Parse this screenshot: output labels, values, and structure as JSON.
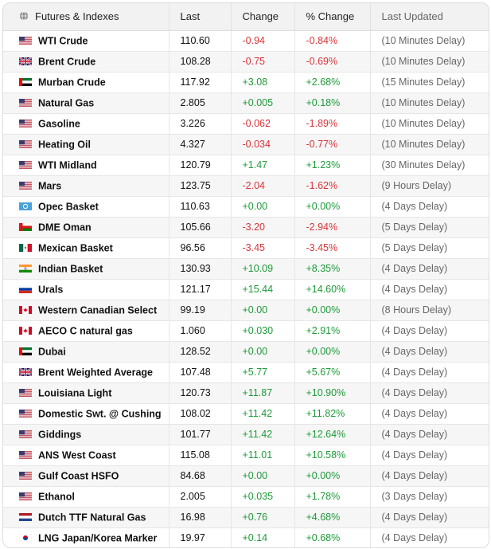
{
  "header": {
    "col1": "Futures & Indexes",
    "col2": "Last",
    "col3": "Change",
    "col4": "% Change",
    "col5": "Last Updated"
  },
  "flag_colors": {
    "us": [
      "#b22234",
      "#ffffff",
      "#3c3b6e"
    ],
    "uk": [
      "#012169",
      "#ffffff",
      "#c8102e"
    ],
    "ae": [
      "#00732f",
      "#ffffff",
      "#000000",
      "#ff0000"
    ],
    "opec": [
      "#4ba3d9",
      "#ffffff"
    ],
    "om": [
      "#db161b",
      "#ffffff",
      "#008000"
    ],
    "mx": [
      "#006847",
      "#ffffff",
      "#ce1126"
    ],
    "in": [
      "#ff9933",
      "#ffffff",
      "#138808"
    ],
    "ru": [
      "#ffffff",
      "#0039a6",
      "#d52b1e"
    ],
    "ca": [
      "#d80621",
      "#ffffff"
    ],
    "nl": [
      "#ae1c28",
      "#ffffff",
      "#21468b"
    ],
    "jpkr": [
      "#ffffff",
      "#bc002d",
      "#0047a0"
    ]
  },
  "rows": [
    {
      "flag": "us",
      "name": "WTI Crude",
      "last": "110.60",
      "change": "-0.94",
      "pct": "-0.84%",
      "updated": "(10 Minutes Delay)"
    },
    {
      "flag": "uk",
      "name": "Brent Crude",
      "last": "108.28",
      "change": "-0.75",
      "pct": "-0.69%",
      "updated": "(10 Minutes Delay)"
    },
    {
      "flag": "ae",
      "name": "Murban Crude",
      "last": "117.92",
      "change": "+3.08",
      "pct": "+2.68%",
      "updated": "(15 Minutes Delay)"
    },
    {
      "flag": "us",
      "name": "Natural Gas",
      "last": "2.805",
      "change": "+0.005",
      "pct": "+0.18%",
      "updated": "(10 Minutes Delay)"
    },
    {
      "flag": "us",
      "name": "Gasoline",
      "last": "3.226",
      "change": "-0.062",
      "pct": "-1.89%",
      "updated": "(10 Minutes Delay)"
    },
    {
      "flag": "us",
      "name": "Heating Oil",
      "last": "4.327",
      "change": "-0.034",
      "pct": "-0.77%",
      "updated": "(10 Minutes Delay)"
    },
    {
      "flag": "us",
      "name": "WTI Midland",
      "last": "120.79",
      "change": "+1.47",
      "pct": "+1.23%",
      "updated": "(30 Minutes Delay)"
    },
    {
      "flag": "us",
      "name": "Mars",
      "last": "123.75",
      "change": "-2.04",
      "pct": "-1.62%",
      "updated": "(9 Hours Delay)"
    },
    {
      "flag": "opec",
      "name": "Opec Basket",
      "last": "110.63",
      "change": "+0.00",
      "pct": "+0.00%",
      "updated": "(4 Days Delay)"
    },
    {
      "flag": "om",
      "name": "DME Oman",
      "last": "105.66",
      "change": "-3.20",
      "pct": "-2.94%",
      "updated": "(5 Days Delay)"
    },
    {
      "flag": "mx",
      "name": "Mexican Basket",
      "last": "96.56",
      "change": "-3.45",
      "pct": "-3.45%",
      "updated": "(5 Days Delay)"
    },
    {
      "flag": "in",
      "name": "Indian Basket",
      "last": "130.93",
      "change": "+10.09",
      "pct": "+8.35%",
      "updated": "(4 Days Delay)"
    },
    {
      "flag": "ru",
      "name": "Urals",
      "last": "121.17",
      "change": "+15.44",
      "pct": "+14.60%",
      "updated": "(4 Days Delay)"
    },
    {
      "flag": "ca",
      "name": "Western Canadian Select",
      "last": "99.19",
      "change": "+0.00",
      "pct": "+0.00%",
      "updated": "(8 Hours Delay)"
    },
    {
      "flag": "ca",
      "name": "AECO C natural gas",
      "last": "1.060",
      "change": "+0.030",
      "pct": "+2.91%",
      "updated": "(4 Days Delay)"
    },
    {
      "flag": "ae",
      "name": "Dubai",
      "last": "128.52",
      "change": "+0.00",
      "pct": "+0.00%",
      "updated": "(4 Days Delay)"
    },
    {
      "flag": "uk",
      "name": "Brent Weighted Average",
      "last": "107.48",
      "change": "+5.77",
      "pct": "+5.67%",
      "updated": "(4 Days Delay)"
    },
    {
      "flag": "us",
      "name": "Louisiana Light",
      "last": "120.73",
      "change": "+11.87",
      "pct": "+10.90%",
      "updated": "(4 Days Delay)"
    },
    {
      "flag": "us",
      "name": "Domestic Swt. @ Cushing",
      "last": "108.02",
      "change": "+11.42",
      "pct": "+11.82%",
      "updated": "(4 Days Delay)"
    },
    {
      "flag": "us",
      "name": "Giddings",
      "last": "101.77",
      "change": "+11.42",
      "pct": "+12.64%",
      "updated": "(4 Days Delay)"
    },
    {
      "flag": "us",
      "name": "ANS West Coast",
      "last": "115.08",
      "change": "+11.01",
      "pct": "+10.58%",
      "updated": "(4 Days Delay)"
    },
    {
      "flag": "us",
      "name": "Gulf Coast HSFO",
      "last": "84.68",
      "change": "+0.00",
      "pct": "+0.00%",
      "updated": "(4 Days Delay)"
    },
    {
      "flag": "us",
      "name": "Ethanol",
      "last": "2.005",
      "change": "+0.035",
      "pct": "+1.78%",
      "updated": "(3 Days Delay)"
    },
    {
      "flag": "nl",
      "name": "Dutch TTF Natural Gas",
      "last": "16.98",
      "change": "+0.76",
      "pct": "+4.68%",
      "updated": "(4 Days Delay)"
    },
    {
      "flag": "jpkr",
      "name": "LNG Japan/Korea Marker",
      "last": "19.97",
      "change": "+0.14",
      "pct": "+0.68%",
      "updated": "(4 Days Delay)"
    }
  ]
}
